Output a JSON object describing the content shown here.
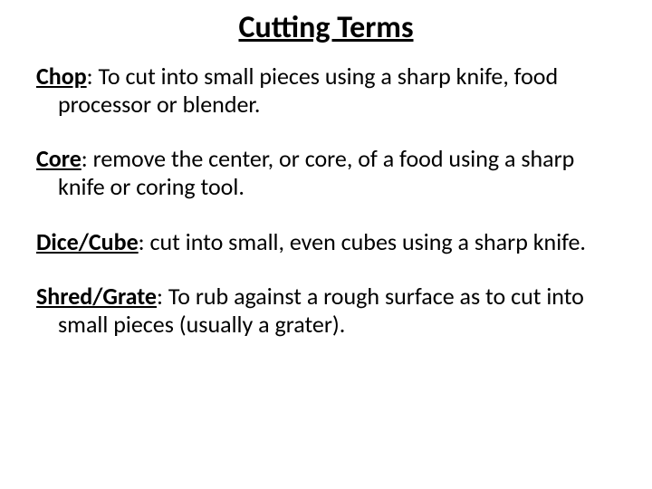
{
  "title": {
    "text": "Cutting Terms",
    "fontsize": 34,
    "color": "#000000"
  },
  "body": {
    "fontsize": 26,
    "color": "#000000"
  },
  "entries": [
    {
      "term": "Chop",
      "definition": ": To cut into small pieces using a sharp knife, food processor or blender."
    },
    {
      "term": "Core",
      "definition": ": remove the center, or core, of a food using a sharp knife or coring tool."
    },
    {
      "term": "Dice/Cube",
      "definition": ": cut into small, even cubes using a sharp knife."
    },
    {
      "term": "Shred/Grate",
      "definition": ": To rub against a rough surface as to cut into small pieces (usually a grater)."
    }
  ]
}
